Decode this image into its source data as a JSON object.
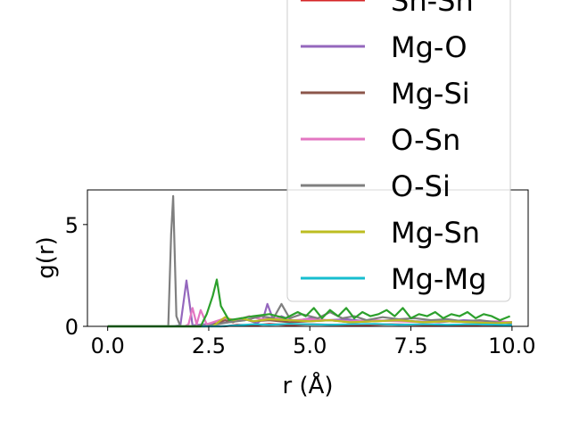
{
  "chart_data": {
    "type": "line",
    "xlabel": "r (Å)",
    "ylabel": "g(r)",
    "xlim": [
      -0.5,
      10.4
    ],
    "ylim": [
      0,
      6.7
    ],
    "xticks": [
      0.0,
      2.5,
      5.0,
      7.5,
      10.0
    ],
    "xtick_labels": [
      "0.0",
      "2.5",
      "5.0",
      "7.5",
      "10.0"
    ],
    "yticks": [
      0,
      5
    ],
    "ytick_labels": [
      "0",
      "5"
    ],
    "legend_position": "top-right, extending above the axes",
    "grid": false,
    "series": [
      {
        "name": "Sn-Sn",
        "color": "#d62728",
        "x": [
          0,
          1.5,
          2.9,
          3.2,
          3.6,
          4.0,
          4.5,
          5.0,
          5.6,
          6.3,
          7.0,
          7.8,
          8.6,
          9.4,
          10.0
        ],
        "y": [
          0,
          0,
          0,
          0.08,
          0.05,
          0.12,
          0.06,
          0.1,
          0.08,
          0.06,
          0.1,
          0.07,
          0.05,
          0.08,
          0.05
        ]
      },
      {
        "name": "Mg-O",
        "color": "#9467bd",
        "x": [
          0,
          1.6,
          1.8,
          1.95,
          2.1,
          2.4,
          3.0,
          3.4,
          3.7,
          3.85,
          3.95,
          4.1,
          4.3,
          4.6,
          5.0,
          5.4,
          5.9,
          6.4,
          7.0,
          7.6,
          8.2,
          8.8,
          9.4,
          10.0
        ],
        "y": [
          0,
          0,
          0.05,
          2.25,
          0.05,
          0.1,
          0.2,
          0.35,
          0.15,
          0.4,
          1.1,
          0.3,
          0.5,
          0.25,
          0.4,
          0.3,
          0.35,
          0.25,
          0.3,
          0.25,
          0.2,
          0.3,
          0.25,
          0.2
        ]
      },
      {
        "name": "Mg-Si",
        "color": "#8c564b",
        "x": [
          0,
          2.5,
          2.9,
          3.1,
          3.3,
          3.6,
          4.0,
          4.5,
          5.0,
          5.5,
          6.0,
          6.6,
          7.2,
          7.8,
          8.4,
          9.0,
          9.6,
          10.0
        ],
        "y": [
          0,
          0,
          0.3,
          0.2,
          0.4,
          0.25,
          0.3,
          0.2,
          0.25,
          0.3,
          0.2,
          0.25,
          0.3,
          0.2,
          0.25,
          0.2,
          0.15,
          0.2
        ]
      },
      {
        "name": "O-Sn",
        "color": "#e377c2",
        "x": [
          0,
          1.9,
          2.0,
          2.1,
          2.2,
          2.3,
          2.45,
          2.6,
          2.9,
          3.2,
          3.5,
          3.8,
          4.2,
          4.6,
          5.0,
          5.5,
          6.0,
          6.6,
          7.2,
          7.8,
          8.4,
          9.0,
          9.6,
          10.0
        ],
        "y": [
          0,
          0,
          0.1,
          0.9,
          0.1,
          0.8,
          0.1,
          0.2,
          0.4,
          0.3,
          0.5,
          0.35,
          0.4,
          0.3,
          0.35,
          0.3,
          0.25,
          0.3,
          0.25,
          0.2,
          0.25,
          0.2,
          0.25,
          0.2
        ]
      },
      {
        "name": "O-Si",
        "color": "#7f7f7f",
        "x": [
          0,
          1.5,
          1.57,
          1.62,
          1.7,
          1.8,
          2.4,
          3.0,
          3.4,
          3.8,
          4.1,
          4.3,
          4.5,
          4.8,
          5.2,
          5.5,
          5.8,
          6.1,
          6.4,
          6.8,
          7.2,
          7.6,
          8.0,
          8.4,
          8.8,
          9.2,
          9.6,
          10.0
        ],
        "y": [
          0,
          0,
          4.5,
          6.4,
          0.5,
          0,
          0,
          0.2,
          0.3,
          0.5,
          0.4,
          1.1,
          0.4,
          0.6,
          0.4,
          0.7,
          0.4,
          0.5,
          0.3,
          0.45,
          0.35,
          0.4,
          0.3,
          0.35,
          0.25,
          0.3,
          0.2,
          0.15
        ]
      },
      {
        "name": "Mg-Sn",
        "color": "#bcbd22",
        "x": [
          0,
          2.6,
          2.9,
          3.1,
          3.3,
          3.6,
          4.0,
          4.5,
          5.0,
          5.5,
          6.0,
          6.6,
          7.2,
          7.8,
          8.4,
          9.0,
          9.6,
          10.0
        ],
        "y": [
          0,
          0,
          0.45,
          0.3,
          0.4,
          0.25,
          0.35,
          0.3,
          0.25,
          0.3,
          0.2,
          0.25,
          0.3,
          0.2,
          0.25,
          0.2,
          0.15,
          0.2
        ]
      },
      {
        "name": "Mg-Mg",
        "color": "#17becf",
        "x": [
          0,
          2.8,
          3.2,
          3.6,
          4.0,
          4.5,
          5.0,
          5.5,
          6.0,
          6.6,
          7.2,
          7.8,
          8.4,
          9.0,
          9.6,
          10.0
        ],
        "y": [
          0,
          0,
          0.05,
          0.1,
          0.08,
          0.12,
          0.1,
          0.08,
          0.1,
          0.12,
          0.08,
          0.1,
          0.08,
          0.1,
          0.08,
          0.06
        ]
      },
      {
        "name": "",
        "color": "#2ca02c",
        "x": [
          0,
          2.3,
          2.45,
          2.6,
          2.7,
          2.8,
          3.0,
          3.3,
          3.6,
          4.0,
          4.4,
          4.7,
          4.9,
          5.1,
          5.3,
          5.5,
          5.7,
          5.9,
          6.1,
          6.3,
          6.5,
          6.7,
          6.9,
          7.1,
          7.3,
          7.5,
          7.7,
          7.9,
          8.1,
          8.3,
          8.5,
          8.7,
          8.9,
          9.1,
          9.3,
          9.5,
          9.7,
          9.95
        ],
        "y": [
          0,
          0,
          0.6,
          1.5,
          2.3,
          1.0,
          0.3,
          0.4,
          0.5,
          0.6,
          0.4,
          0.7,
          0.5,
          0.9,
          0.4,
          0.8,
          0.5,
          0.9,
          0.4,
          0.7,
          0.5,
          0.6,
          0.8,
          0.5,
          0.9,
          0.4,
          0.6,
          0.5,
          0.7,
          0.4,
          0.6,
          0.5,
          0.7,
          0.4,
          0.6,
          0.5,
          0.3,
          0.5
        ]
      }
    ],
    "legend_items": [
      "Sn-Sn",
      "Mg-O",
      "Mg-Si",
      "O-Sn",
      "O-Si",
      "Mg-Sn",
      "Mg-Mg"
    ]
  }
}
